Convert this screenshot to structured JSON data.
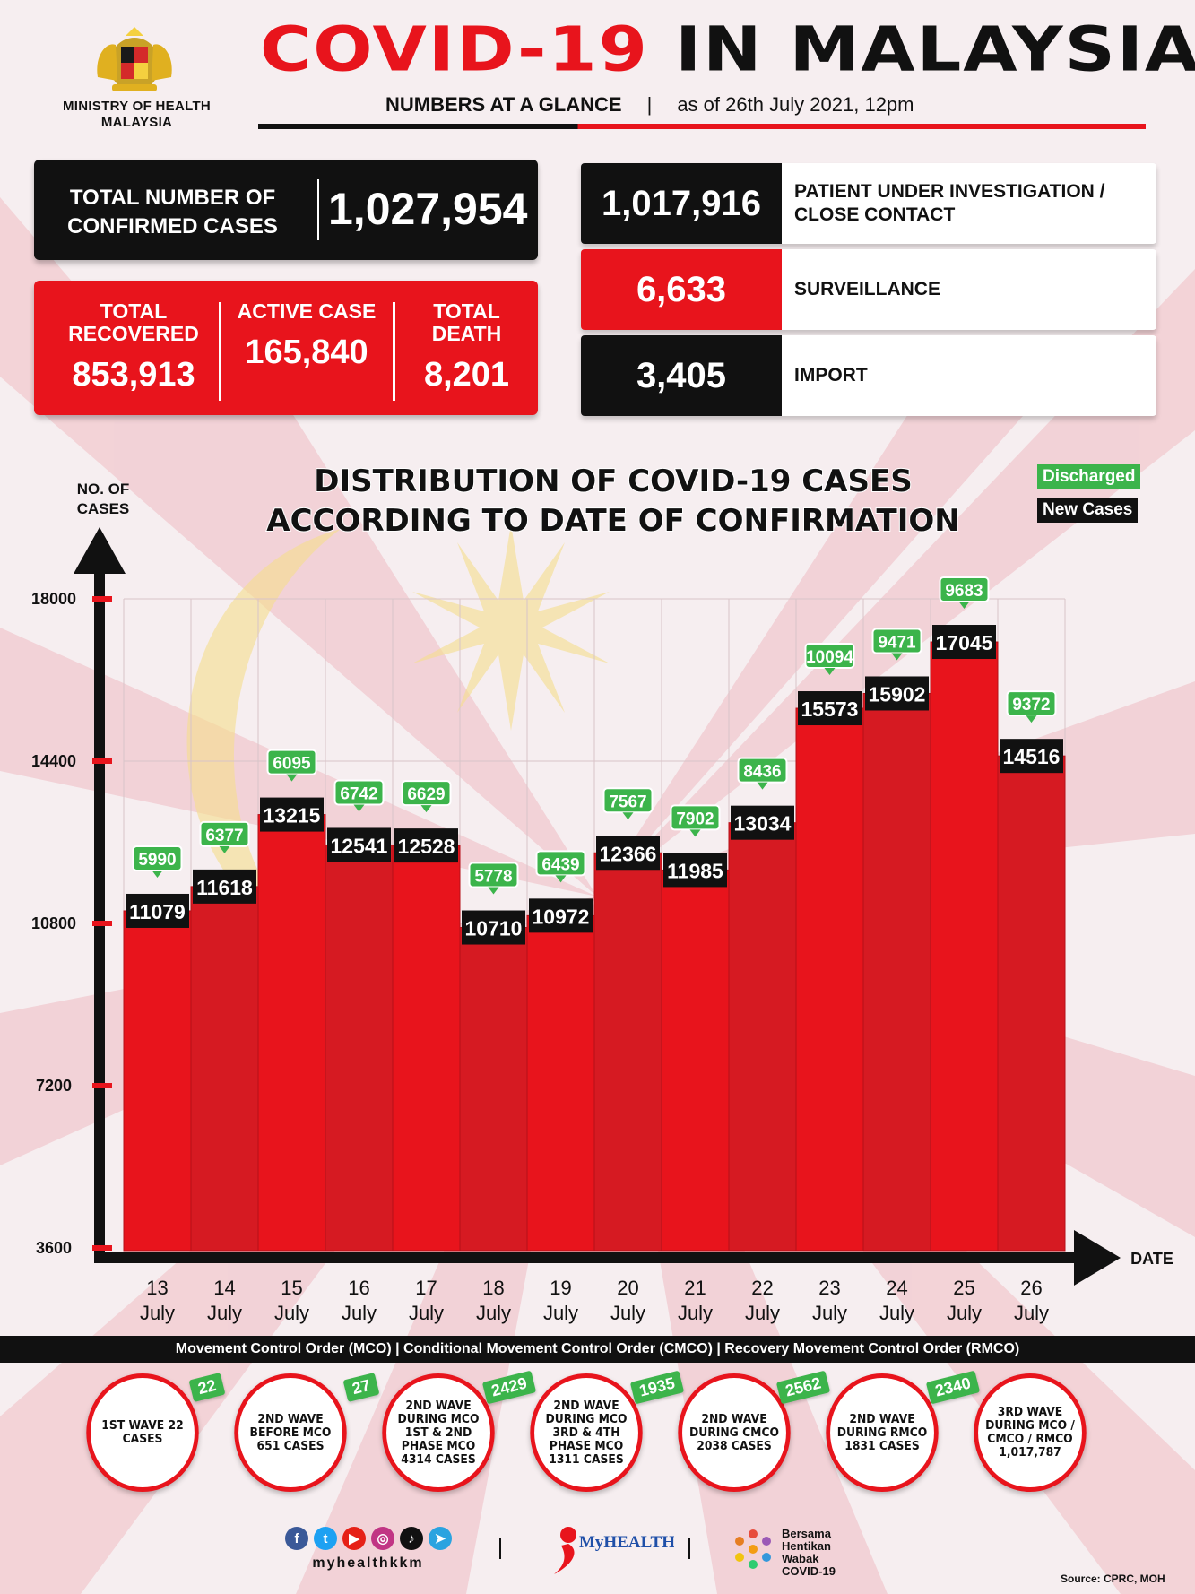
{
  "header": {
    "ministry": "MINISTRY OF HEALTH MALAYSIA",
    "title_red": "COVID-19",
    "title_black": "IN MALAYSIA",
    "subtitle_bold": "NUMBERS AT A GLANCE",
    "separator": "|",
    "as_of": "as of 26th July 2021, 12pm"
  },
  "stats": {
    "confirmed_label": "TOTAL NUMBER OF CONFIRMED CASES",
    "confirmed_value": "1,027,954",
    "recovered_label": "TOTAL RECOVERED",
    "recovered_value": "853,913",
    "active_label": "ACTIVE CASE",
    "active_value": "165,840",
    "death_label": "TOTAL DEATH",
    "death_value": "8,201"
  },
  "categories": [
    {
      "value": "1,017,916",
      "label": "PATIENT UNDER INVESTIGATION / CLOSE CONTACT",
      "color": "#111111"
    },
    {
      "value": "6,633",
      "label": "SURVEILLANCE",
      "color": "#e8141c"
    },
    {
      "value": "3,405",
      "label": "IMPORT",
      "color": "#111111"
    }
  ],
  "legend": {
    "discharged": "Discharged",
    "new_cases": "New Cases",
    "discharged_color": "#3cb44b",
    "new_cases_color": "#111111"
  },
  "chart_data": {
    "type": "bar",
    "title": "DISTRIBUTION OF COVID-19 CASES ACCORDING TO DATE OF CONFIRMATION",
    "xlabel": "DATE",
    "ylabel": "NO. OF CASES",
    "ylim": [
      3600,
      18000
    ],
    "yticks": [
      3600,
      7200,
      10800,
      14400,
      18000
    ],
    "categories": [
      "13 July",
      "14 July",
      "15 July",
      "16 July",
      "17 July",
      "18 July",
      "19 July",
      "20 July",
      "21 July",
      "22 July",
      "23 July",
      "24 July",
      "25 July",
      "26 July"
    ],
    "series": [
      {
        "name": "New Cases",
        "values": [
          11079,
          11618,
          13215,
          12541,
          12528,
          10710,
          10972,
          12366,
          11985,
          13034,
          15573,
          15902,
          17045,
          14516
        ]
      },
      {
        "name": "Discharged",
        "values": [
          5990,
          6377,
          6095,
          6742,
          6629,
          5778,
          6439,
          7567,
          7902,
          8436,
          10094,
          9471,
          9683,
          9372
        ]
      }
    ],
    "bar_color": "#e8141c"
  },
  "mco_bar": "Movement Control Order (MCO) | Conditional Movement Control Order (CMCO) | Recovery Movement Control Order (RMCO)",
  "waves": [
    {
      "text": "1ST WAVE 22 CASES",
      "tag": "22"
    },
    {
      "text": "2ND WAVE BEFORE MCO 651 CASES",
      "tag": "27"
    },
    {
      "text": "2ND WAVE DURING MCO 1ST & 2ND PHASE MCO 4314 CASES",
      "tag": "2429"
    },
    {
      "text": "2ND WAVE DURING MCO 3RD & 4TH PHASE MCO 1311 CASES",
      "tag": "1935"
    },
    {
      "text": "2ND WAVE DURING CMCO 2038 CASES",
      "tag": "2562"
    },
    {
      "text": "2ND WAVE DURING RMCO 1831 CASES",
      "tag": "2340"
    },
    {
      "text": "3RD WAVE DURING MCO / CMCO / RMCO 1,017,787",
      "tag": ""
    }
  ],
  "footer": {
    "handle": "myhealthkkm",
    "myhealth": "MyHEALTH",
    "bersama": "Bersama Hentikan Wabak COVID-19",
    "source": "Source: CPRC, MOH"
  }
}
